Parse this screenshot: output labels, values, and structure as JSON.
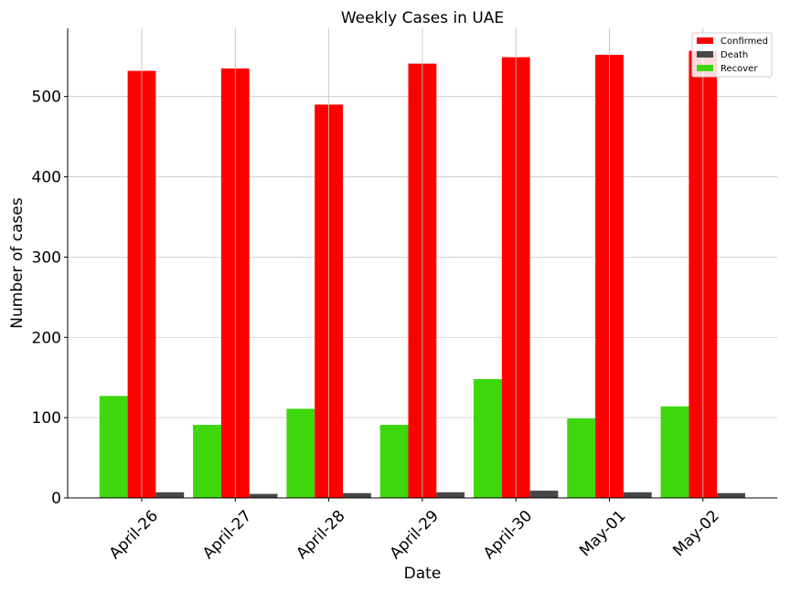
{
  "chart_data": {
    "type": "bar",
    "title": "Weekly Cases in UAE",
    "xlabel": "Date",
    "ylabel": "Number of cases",
    "categories": [
      "April-26",
      "April-27",
      "April-28",
      "April-29",
      "April-30",
      "May-01",
      "May-02"
    ],
    "series": [
      {
        "name": "Recover",
        "color": "#3dd70c",
        "values": [
          127,
          91,
          111,
          91,
          148,
          99,
          114
        ]
      },
      {
        "name": "Confirmed",
        "color": "#ff0000",
        "values": [
          532,
          535,
          490,
          541,
          549,
          552,
          557
        ]
      },
      {
        "name": "Death",
        "color": "#474747",
        "values": [
          7,
          5,
          6,
          7,
          9,
          7,
          6
        ]
      }
    ],
    "legend_order": [
      "Confirmed",
      "Death",
      "Recover"
    ],
    "legend_position": "top-right",
    "ylim": [
      0,
      585
    ],
    "yticks": [
      0,
      100,
      200,
      300,
      400,
      500
    ],
    "grid": true
  }
}
